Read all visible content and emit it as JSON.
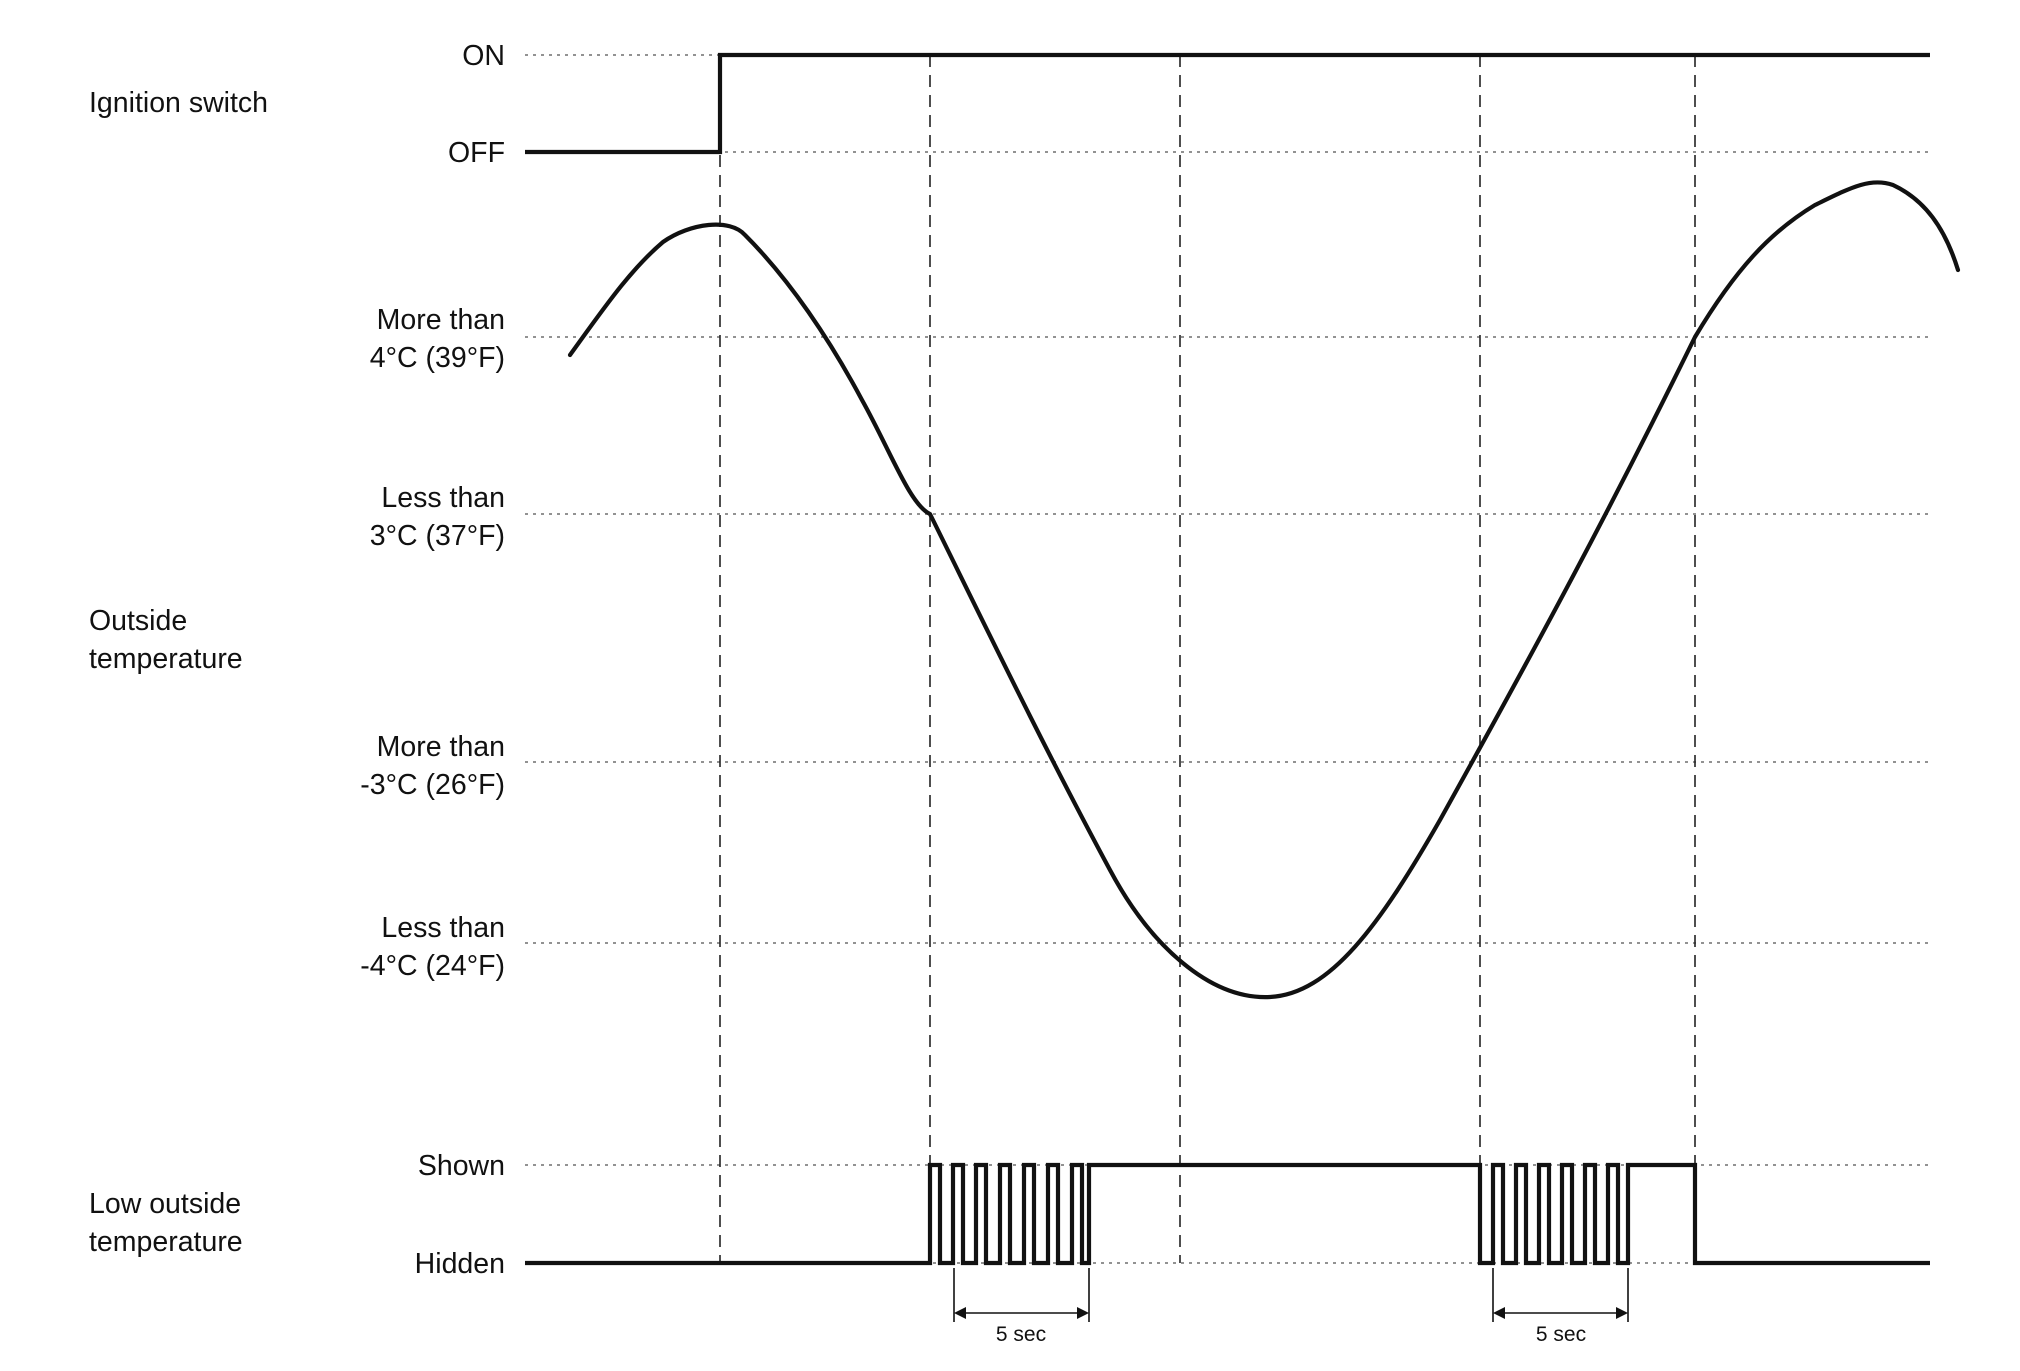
{
  "diagram": {
    "rows": {
      "ignition": {
        "title": "Ignition switch",
        "states": {
          "on": "ON",
          "off": "OFF"
        }
      },
      "temperature": {
        "title_line1": "Outside",
        "title_line2": "temperature",
        "thresholds": [
          {
            "line1": "More than",
            "line2": "4°C (39°F)"
          },
          {
            "line1": "Less than",
            "line2": "3°C (37°F)"
          },
          {
            "line1": "More than",
            "line2": "-3°C (26°F)"
          },
          {
            "line1": "Less than",
            "line2": "-4°C (24°F)"
          }
        ]
      },
      "indicator": {
        "title_line1": "Low outside",
        "title_line2": "temperature",
        "states": {
          "shown": "Shown",
          "hidden": "Hidden"
        }
      }
    },
    "durations": [
      {
        "label": "5 sec"
      },
      {
        "label": "5 sec"
      }
    ],
    "colors": {
      "line": "#111111",
      "guide": "#6f6f6f",
      "background": "#ffffff"
    }
  }
}
